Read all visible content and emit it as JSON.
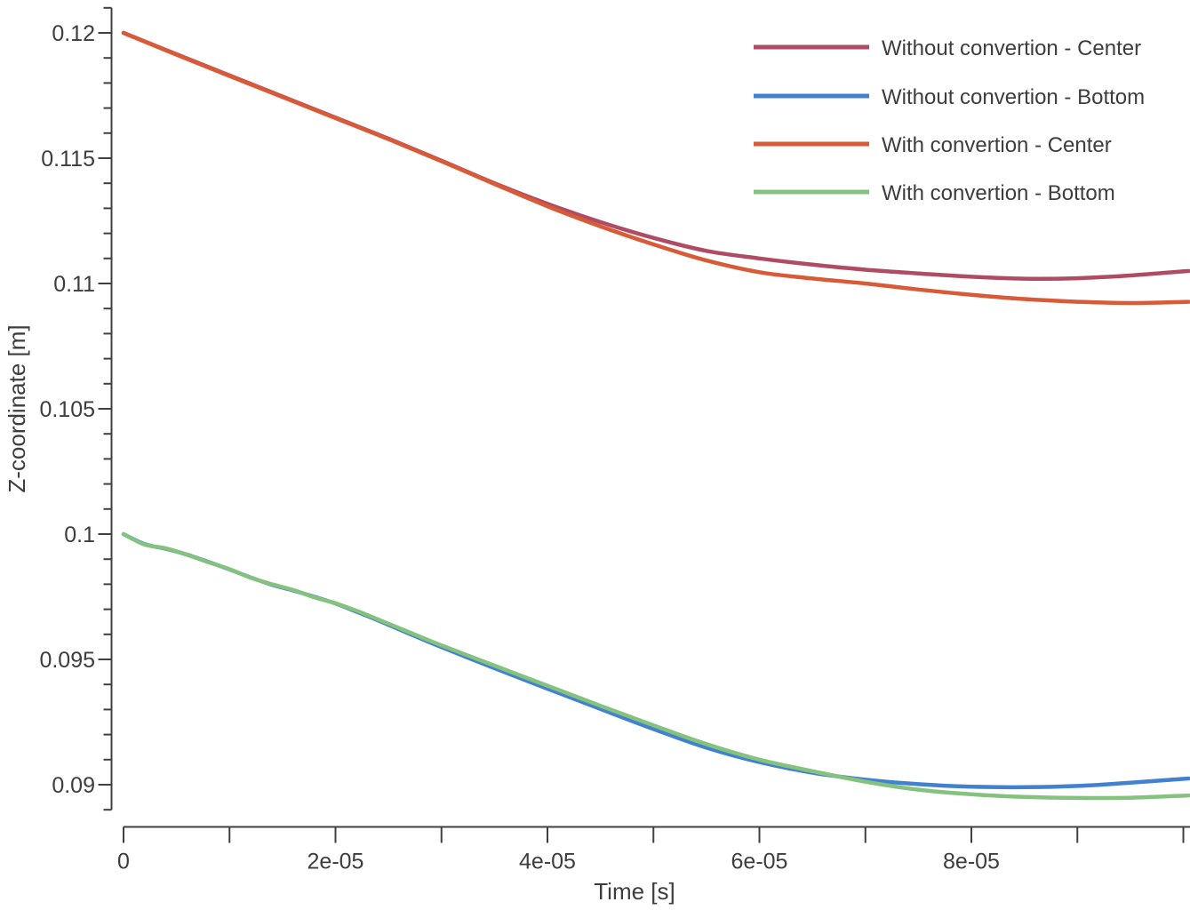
{
  "colors": {
    "background": "#ffffff",
    "axis": "#404040",
    "text": "#3d3d3d",
    "series_without_center": "#AF4C63",
    "series_without_bottom": "#4181D0",
    "series_with_center": "#D85A37",
    "series_with_bottom": "#85C27F"
  },
  "chart_data": {
    "type": "line",
    "title": "",
    "xlabel": "Time [s]",
    "ylabel": "Z-coordinate [m]",
    "xlim": [
      0,
      0.0001006
    ],
    "ylim": [
      0.089,
      0.121
    ],
    "grid": false,
    "legend_position": "top-right",
    "x_ticks": [
      {
        "v": 0,
        "label": "0"
      },
      {
        "v": 2e-05,
        "label": "2e-05"
      },
      {
        "v": 4e-05,
        "label": "4e-05"
      },
      {
        "v": 6e-05,
        "label": "6e-05"
      },
      {
        "v": 8e-05,
        "label": "8e-05"
      }
    ],
    "x_minor_ticks": [
      1e-05,
      3e-05,
      5e-05,
      7e-05,
      9e-05,
      0.0001
    ],
    "y_ticks": [
      {
        "v": 0.09,
        "label": "0.09"
      },
      {
        "v": 0.095,
        "label": "0.095"
      },
      {
        "v": 0.1,
        "label": "0.1"
      },
      {
        "v": 0.105,
        "label": "0.105"
      },
      {
        "v": 0.11,
        "label": "0.11"
      },
      {
        "v": 0.115,
        "label": "0.115"
      },
      {
        "v": 0.12,
        "label": "0.12"
      }
    ],
    "y_minor_ticks": [
      0.089,
      0.091,
      0.092,
      0.093,
      0.094,
      0.096,
      0.097,
      0.098,
      0.099,
      0.101,
      0.102,
      0.103,
      0.104,
      0.106,
      0.107,
      0.108,
      0.109,
      0.111,
      0.112,
      0.113,
      0.114,
      0.116,
      0.117,
      0.118,
      0.119,
      0.121
    ],
    "series": [
      {
        "name": "Without convertion - Center",
        "color": "#AF4C63",
        "points": [
          [
            0,
            0.12
          ],
          [
            5e-06,
            0.11915
          ],
          [
            1e-05,
            0.1183
          ],
          [
            1.5e-05,
            0.11746
          ],
          [
            2e-05,
            0.11662
          ],
          [
            2.5e-05,
            0.11578
          ],
          [
            3e-05,
            0.1149
          ],
          [
            3.5e-05,
            0.114
          ],
          [
            4e-05,
            0.11318
          ],
          [
            4.5e-05,
            0.11245
          ],
          [
            5e-05,
            0.11182
          ],
          [
            5.5e-05,
            0.1113
          ],
          [
            6e-05,
            0.111
          ],
          [
            6.5e-05,
            0.11075
          ],
          [
            7e-05,
            0.11055
          ],
          [
            7.5e-05,
            0.1104
          ],
          [
            8e-05,
            0.11027
          ],
          [
            8.5e-05,
            0.11019
          ],
          [
            9e-05,
            0.11021
          ],
          [
            9.5e-05,
            0.11032
          ],
          [
            0.0001005,
            0.1105
          ]
        ]
      },
      {
        "name": "Without convertion - Bottom",
        "color": "#4181D0",
        "points": [
          [
            0,
            0.1
          ],
          [
            2e-06,
            0.0996
          ],
          [
            4e-06,
            0.09941
          ],
          [
            6e-06,
            0.09918
          ],
          [
            8e-06,
            0.09889
          ],
          [
            1e-05,
            0.09859
          ],
          [
            1.2e-05,
            0.09827
          ],
          [
            1.4e-05,
            0.09798
          ],
          [
            1.6e-05,
            0.09775
          ],
          [
            1.8e-05,
            0.0975
          ],
          [
            2e-05,
            0.09723
          ],
          [
            2.2e-05,
            0.0969
          ],
          [
            2.4e-05,
            0.09656
          ],
          [
            2.6e-05,
            0.0962
          ],
          [
            2.8e-05,
            0.09584
          ],
          [
            3e-05,
            0.09549
          ],
          [
            3.5e-05,
            0.09465
          ],
          [
            4e-05,
            0.09383
          ],
          [
            4.5e-05,
            0.09302
          ],
          [
            5e-05,
            0.09222
          ],
          [
            5.5e-05,
            0.09148
          ],
          [
            6e-05,
            0.0909
          ],
          [
            6.5e-05,
            0.09048
          ],
          [
            7e-05,
            0.0902
          ],
          [
            7.5e-05,
            0.09002
          ],
          [
            8e-05,
            0.08992
          ],
          [
            8.5e-05,
            0.0899
          ],
          [
            9e-05,
            0.08995
          ],
          [
            9.5e-05,
            0.09008
          ],
          [
            0.0001005,
            0.09025
          ]
        ]
      },
      {
        "name": "With convertion - Center",
        "color": "#D85A37",
        "points": [
          [
            0,
            0.12
          ],
          [
            5e-06,
            0.11913
          ],
          [
            1e-05,
            0.11828
          ],
          [
            1.5e-05,
            0.11744
          ],
          [
            2e-05,
            0.1166
          ],
          [
            2.5e-05,
            0.11576
          ],
          [
            3e-05,
            0.11488
          ],
          [
            3.5e-05,
            0.11397
          ],
          [
            4e-05,
            0.11308
          ],
          [
            4.5e-05,
            0.11228
          ],
          [
            5e-05,
            0.11156
          ],
          [
            5.5e-05,
            0.11092
          ],
          [
            6e-05,
            0.11045
          ],
          [
            6.5e-05,
            0.1102
          ],
          [
            7e-05,
            0.11
          ],
          [
            7.5e-05,
            0.10976
          ],
          [
            8e-05,
            0.10955
          ],
          [
            8.5e-05,
            0.10938
          ],
          [
            9e-05,
            0.10927
          ],
          [
            9.5e-05,
            0.10922
          ],
          [
            0.0001005,
            0.10927
          ]
        ]
      },
      {
        "name": "With convertion - Bottom",
        "color": "#85C27F",
        "points": [
          [
            0,
            0.1
          ],
          [
            2e-06,
            0.09958
          ],
          [
            4e-06,
            0.09943
          ],
          [
            6e-06,
            0.09917
          ],
          [
            8e-06,
            0.09888
          ],
          [
            1e-05,
            0.0986
          ],
          [
            1.2e-05,
            0.09826
          ],
          [
            1.4e-05,
            0.098
          ],
          [
            1.6e-05,
            0.09777
          ],
          [
            1.8e-05,
            0.09748
          ],
          [
            2e-05,
            0.09724
          ],
          [
            2.2e-05,
            0.09694
          ],
          [
            2.4e-05,
            0.0966
          ],
          [
            2.6e-05,
            0.09625
          ],
          [
            2.8e-05,
            0.0959
          ],
          [
            3e-05,
            0.09556
          ],
          [
            3.5e-05,
            0.09475
          ],
          [
            4e-05,
            0.09395
          ],
          [
            4.5e-05,
            0.09315
          ],
          [
            5e-05,
            0.09237
          ],
          [
            5.5e-05,
            0.09162
          ],
          [
            6e-05,
            0.091
          ],
          [
            6.5e-05,
            0.09054
          ],
          [
            7e-05,
            0.09012
          ],
          [
            7.5e-05,
            0.0898
          ],
          [
            8e-05,
            0.08962
          ],
          [
            8.5e-05,
            0.08951
          ],
          [
            9e-05,
            0.08947
          ],
          [
            9.5e-05,
            0.08948
          ],
          [
            0.0001005,
            0.08957
          ]
        ]
      }
    ]
  }
}
